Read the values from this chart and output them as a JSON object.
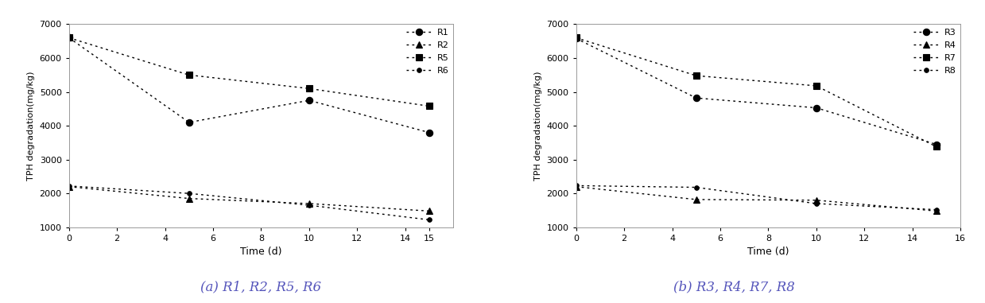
{
  "subplot_a": {
    "xlabel": "Time (d)",
    "ylabel": "TPH degradation(mg/kg)",
    "xlim": [
      0,
      16
    ],
    "ylim": [
      1000,
      7000
    ],
    "xticks": [
      0,
      2,
      4,
      6,
      8,
      10,
      12,
      14,
      15
    ],
    "yticks": [
      1000,
      2000,
      3000,
      4000,
      5000,
      6000,
      7000
    ],
    "series": [
      {
        "label": "R1",
        "x": [
          0,
          5,
          10,
          15
        ],
        "y": [
          6600,
          4100,
          4750,
          3800
        ],
        "marker": "o",
        "filled": true,
        "markersize": 6
      },
      {
        "label": "R2",
        "x": [
          0,
          5,
          10,
          15
        ],
        "y": [
          2200,
          1850,
          1700,
          1480
        ],
        "marker": "^",
        "filled": true,
        "markersize": 6
      },
      {
        "label": "R5",
        "x": [
          0,
          5,
          10,
          15
        ],
        "y": [
          6600,
          5500,
          5100,
          4580
        ],
        "marker": "s",
        "filled": true,
        "markersize": 6
      },
      {
        "label": "R6",
        "x": [
          0,
          5,
          10,
          15
        ],
        "y": [
          2220,
          2000,
          1650,
          1220
        ],
        "marker": "o",
        "filled": true,
        "markersize": 4
      }
    ]
  },
  "subplot_b": {
    "xlabel": "Time (d)",
    "ylabel": "TPH degradation(mg/kg)",
    "xlim": [
      0,
      16
    ],
    "ylim": [
      1000,
      7000
    ],
    "xticks": [
      0,
      2,
      4,
      6,
      8,
      10,
      12,
      14,
      16
    ],
    "yticks": [
      1000,
      2000,
      3000,
      4000,
      5000,
      6000,
      7000
    ],
    "series": [
      {
        "label": "R3",
        "x": [
          0,
          5,
          10,
          15
        ],
        "y": [
          6580,
          4820,
          4530,
          3450
        ],
        "marker": "o",
        "filled": true,
        "markersize": 6
      },
      {
        "label": "R4",
        "x": [
          0,
          5,
          10,
          15
        ],
        "y": [
          2200,
          1820,
          1800,
          1480
        ],
        "marker": "^",
        "filled": true,
        "markersize": 6
      },
      {
        "label": "R7",
        "x": [
          0,
          5,
          10,
          15
        ],
        "y": [
          6600,
          5480,
          5180,
          3380
        ],
        "marker": "s",
        "filled": true,
        "markersize": 6
      },
      {
        "label": "R8",
        "x": [
          0,
          5,
          10,
          15
        ],
        "y": [
          2230,
          2180,
          1700,
          1520
        ],
        "marker": "o",
        "filled": true,
        "markersize": 4
      }
    ]
  },
  "fig_background": "#ffffff",
  "ax_background": "#ffffff",
  "caption_a": "(a) R1, R2, R5, R6",
  "caption_b": "(b) R3, R4, R7, R8",
  "caption_fontsize": 12,
  "caption_color": "#5555bb",
  "linewidth": 1.0,
  "dot_dash": [
    2,
    3
  ]
}
